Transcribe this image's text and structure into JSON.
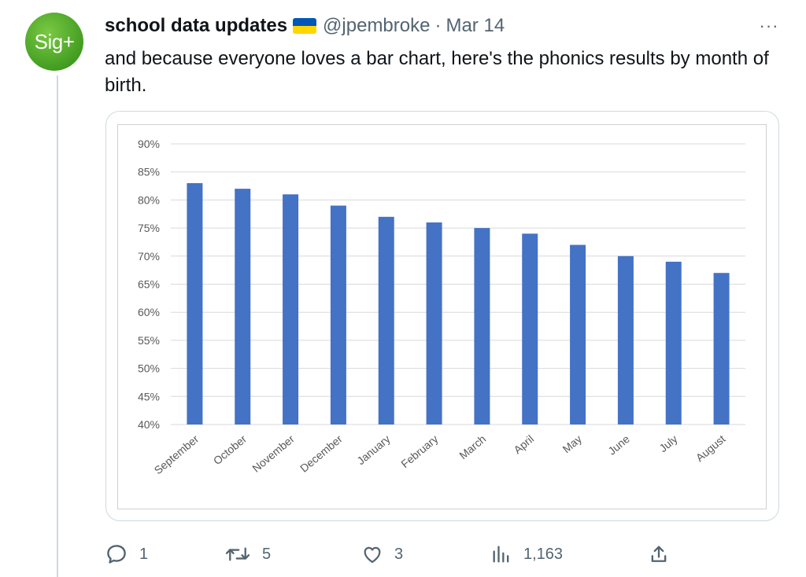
{
  "tweet": {
    "avatar_text": "Sig+",
    "author_name": "school data updates",
    "flag": "ukraine-flag",
    "handle": "@jpembroke",
    "separator": "·",
    "date": "Mar 14",
    "more": "···",
    "text": "and because everyone loves a bar chart, here's the phonics results by month of birth."
  },
  "actions": {
    "replies": "1",
    "retweets": "5",
    "likes": "3",
    "views": "1,163"
  },
  "colors": {
    "bar": "#4472c4",
    "grid": "#d9d9d9",
    "tick_text": "#595959",
    "muted_text": "#536471"
  },
  "chart_data": {
    "type": "bar",
    "categories": [
      "September",
      "October",
      "November",
      "December",
      "January",
      "February",
      "March",
      "April",
      "May",
      "June",
      "July",
      "August"
    ],
    "values": [
      83,
      82,
      81,
      79,
      77,
      76,
      75,
      74,
      72,
      70,
      69,
      67
    ],
    "title": "",
    "xlabel": "",
    "ylabel": "",
    "ylim": [
      40,
      90
    ],
    "y_ticks": [
      40,
      45,
      50,
      55,
      60,
      65,
      70,
      75,
      80,
      85,
      90
    ],
    "y_tick_format": "percent",
    "grid": true,
    "legend": "none"
  }
}
